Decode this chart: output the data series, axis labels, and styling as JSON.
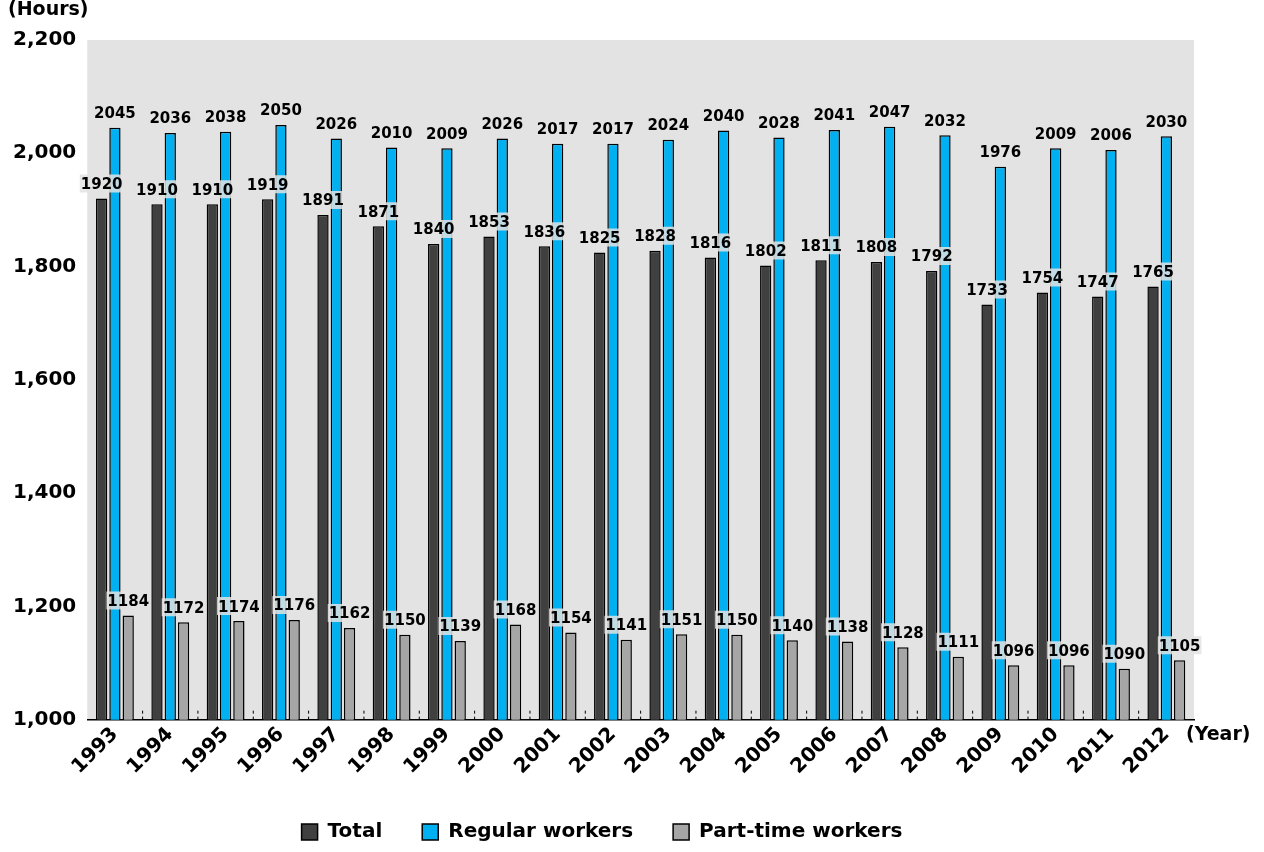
{
  "chart_data": {
    "type": "bar",
    "ylabel": "(Hours)",
    "xlabel": "(Year)",
    "categories": [
      "1993",
      "1994",
      "1995",
      "1996",
      "1997",
      "1998",
      "1999",
      "2000",
      "2001",
      "2002",
      "2003",
      "2004",
      "2005",
      "2006",
      "2007",
      "2008",
      "2009",
      "2010",
      "2011",
      "2012"
    ],
    "series": [
      {
        "name": "Total",
        "color": "#404040",
        "values": [
          1920,
          1910,
          1910,
          1919,
          1891,
          1871,
          1840,
          1853,
          1836,
          1825,
          1828,
          1816,
          1802,
          1811,
          1808,
          1792,
          1733,
          1754,
          1747,
          1765
        ]
      },
      {
        "name": "Regular workers",
        "color": "#00b0f0",
        "values": [
          2045,
          2036,
          2038,
          2050,
          2026,
          2010,
          2009,
          2026,
          2017,
          2017,
          2024,
          2040,
          2028,
          2041,
          2047,
          2032,
          1976,
          2009,
          2006,
          2030
        ]
      },
      {
        "name": "Part-time workers",
        "color": "#a6a6a6",
        "values": [
          1184,
          1172,
          1174,
          1176,
          1162,
          1150,
          1139,
          1168,
          1154,
          1141,
          1151,
          1150,
          1140,
          1138,
          1128,
          1111,
          1096,
          1096,
          1090,
          1105
        ]
      }
    ],
    "ylim": [
      1000,
      2200
    ],
    "yticks": [
      {
        "value": 1000,
        "label": "1,000"
      },
      {
        "value": 1200,
        "label": "1,200"
      },
      {
        "value": 1400,
        "label": "1,400"
      },
      {
        "value": 1600,
        "label": "1,600"
      },
      {
        "value": 1800,
        "label": "1,800"
      },
      {
        "value": 2000,
        "label": "2,000"
      },
      {
        "value": 2200,
        "label": "2,200"
      }
    ],
    "grid": false,
    "legend": "bottom",
    "data_labels": true
  }
}
